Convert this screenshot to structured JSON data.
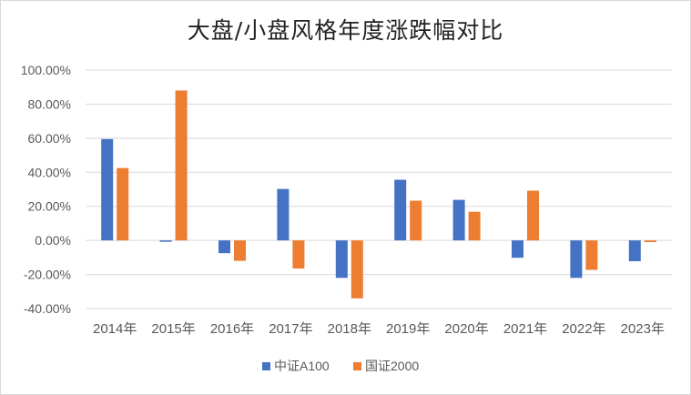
{
  "chart_data": {
    "type": "bar",
    "title": "大盘/小盘风格年度涨跌幅对比",
    "categories": [
      "2014年",
      "2015年",
      "2016年",
      "2017年",
      "2018年",
      "2019年",
      "2020年",
      "2021年",
      "2022年",
      "2023年"
    ],
    "series": [
      {
        "name": "中证A100",
        "color": "#4472C4",
        "values": [
          59.5,
          -0.8,
          -7.5,
          30.2,
          -22.0,
          35.6,
          23.8,
          -10.2,
          -22.0,
          -12.2
        ]
      },
      {
        "name": "国证2000",
        "color": "#ED7D31",
        "values": [
          42.5,
          88.0,
          -12.0,
          -16.5,
          -34.0,
          23.3,
          16.8,
          29.2,
          -17.3,
          -1.0
        ]
      }
    ],
    "yticks": [
      "-40.00%",
      "-20.00%",
      "0.00%",
      "20.00%",
      "40.00%",
      "60.00%",
      "80.00%",
      "100.00%"
    ],
    "ylim": [
      -40,
      100
    ],
    "grid": true,
    "legend": "bottom"
  }
}
